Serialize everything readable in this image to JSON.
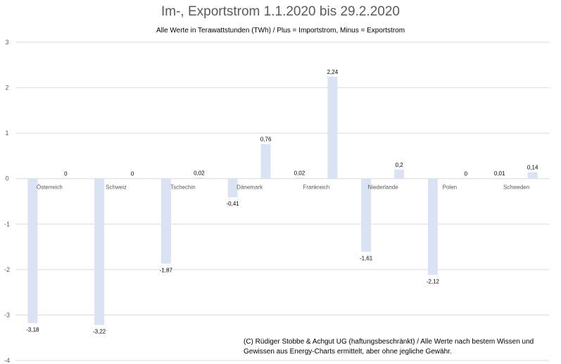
{
  "title": "Im-, Exportstrom 1.1.2020 bis 29.2.2020",
  "subtitle": "Alle Werte in Terawattstunden (TWh) / Plus = Importstrom, Minus = Exportstrom",
  "copyright": "(C) Rüdiger Stobbe & Achgut UG (haftungsbeschränkt) / Alle Werte nach bestem Wissen und Gewissen aus Energy-Charts ermittelt, aber ohne jegliche Gewähr.",
  "colors": {
    "bar": "#d9e3f3",
    "grid": "#d9d9d9",
    "axis_text": "#595959"
  },
  "chart_data": {
    "type": "bar",
    "title": "Im-, Exportstrom 1.1.2020 bis 29.2.2020",
    "subtitle": "Alle Werte in Terawattstunden (TWh) / Plus = Importstrom, Minus = Exportstrom",
    "categories": [
      "Österreich",
      "Schweiz",
      "Tschechin",
      "Dänemark",
      "Frankreich",
      "Niederlande",
      "Polen",
      "Schweden"
    ],
    "series": [
      {
        "values": [
          -3.18,
          -3.22,
          -1.87,
          -0.41,
          0.02,
          -1.61,
          -2.12,
          0.01
        ],
        "labels": [
          "-3,18",
          "-3,22",
          "-1,87",
          "-0,41",
          "0,02",
          "-1,61",
          "-2,12",
          "0,01"
        ]
      },
      {
        "values": [
          0,
          0,
          0.02,
          0.76,
          2.24,
          0.2,
          0,
          0.14
        ],
        "labels": [
          "0",
          "0",
          "0,02",
          "0,76",
          "2,24",
          "0,2",
          "0",
          "0,14"
        ]
      }
    ],
    "ylim": [
      -4,
      3
    ],
    "yticks": [
      3,
      2,
      1,
      0,
      -1,
      -2,
      -3,
      -4
    ],
    "grid": true,
    "legend": "none"
  }
}
